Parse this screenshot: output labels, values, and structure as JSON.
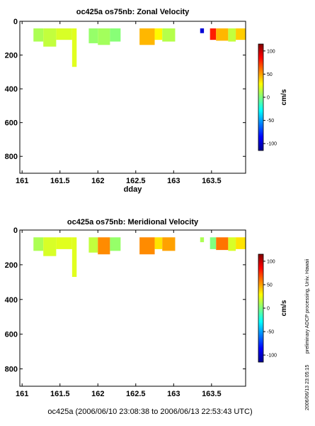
{
  "chart_data": [
    {
      "type": "heatmap",
      "title": "oc425a os75nb: Zonal Velocity",
      "xlabel": "dday",
      "ylabel": "",
      "xlim": [
        160.97,
        163.95
      ],
      "ylim": [
        900,
        0
      ],
      "xticks": [
        161,
        161.5,
        162,
        162.5,
        163,
        163.5
      ],
      "xtick_labels": [
        "161",
        "161.5",
        "162",
        "162.5",
        "163",
        "163.5"
      ],
      "yticks": [
        0,
        200,
        400,
        600,
        800
      ],
      "ytick_labels": [
        "0",
        "200",
        "400",
        "600",
        "800"
      ],
      "colorbar": {
        "label": "cm/s",
        "ticks": [
          100,
          50,
          0,
          -50,
          -100
        ],
        "tick_labels": [
          "100",
          "50",
          "0",
          "-50",
          "-100"
        ],
        "range": [
          -115,
          115
        ]
      },
      "cells": [
        {
          "x0": 161.15,
          "x1": 161.28,
          "depth": 120,
          "value": 10
        },
        {
          "x0": 161.28,
          "x1": 161.45,
          "depth": 150,
          "value": 15
        },
        {
          "x0": 161.45,
          "x1": 161.66,
          "depth": 110,
          "value": 20
        },
        {
          "x0": 161.66,
          "x1": 161.72,
          "depth": 270,
          "value": 22
        },
        {
          "x0": 161.88,
          "x1": 162.0,
          "depth": 130,
          "value": 5
        },
        {
          "x0": 162.0,
          "x1": 162.16,
          "depth": 140,
          "value": 8
        },
        {
          "x0": 162.16,
          "x1": 162.3,
          "depth": 120,
          "value": 2
        },
        {
          "x0": 162.55,
          "x1": 162.75,
          "depth": 140,
          "value": 45
        },
        {
          "x0": 162.75,
          "x1": 162.85,
          "depth": 110,
          "value": 30
        },
        {
          "x0": 162.85,
          "x1": 163.02,
          "depth": 120,
          "value": 12
        },
        {
          "x0": 163.35,
          "x1": 163.4,
          "depth": 70,
          "value": -95
        },
        {
          "x0": 163.48,
          "x1": 163.56,
          "depth": 110,
          "value": 80
        },
        {
          "x0": 163.56,
          "x1": 163.72,
          "depth": 115,
          "value": 45
        },
        {
          "x0": 163.72,
          "x1": 163.82,
          "depth": 120,
          "value": 15
        },
        {
          "x0": 163.82,
          "x1": 163.95,
          "depth": 110,
          "value": 40
        }
      ]
    },
    {
      "type": "heatmap",
      "title": "oc425a os75nb: Meridional Velocity",
      "xlabel": "",
      "ylabel": "",
      "xlim": [
        160.97,
        163.95
      ],
      "ylim": [
        900,
        0
      ],
      "xticks": [
        161,
        161.5,
        162,
        162.5,
        163,
        163.5
      ],
      "xtick_labels": [
        "161",
        "161.5",
        "162",
        "162.5",
        "163",
        "163.5"
      ],
      "yticks": [
        0,
        200,
        400,
        600,
        800
      ],
      "ytick_labels": [
        "0",
        "200",
        "400",
        "600",
        "800"
      ],
      "colorbar": {
        "label": "cm/s",
        "ticks": [
          100,
          50,
          0,
          -50,
          -100
        ],
        "tick_labels": [
          "100",
          "50",
          "0",
          "-50",
          "-100"
        ],
        "range": [
          -115,
          115
        ]
      },
      "cells": [
        {
          "x0": 161.15,
          "x1": 161.28,
          "depth": 120,
          "value": 10
        },
        {
          "x0": 161.28,
          "x1": 161.45,
          "depth": 150,
          "value": 20
        },
        {
          "x0": 161.45,
          "x1": 161.66,
          "depth": 110,
          "value": 22
        },
        {
          "x0": 161.66,
          "x1": 161.72,
          "depth": 270,
          "value": 22
        },
        {
          "x0": 161.88,
          "x1": 162.0,
          "depth": 130,
          "value": 15
        },
        {
          "x0": 162.0,
          "x1": 162.16,
          "depth": 140,
          "value": 55
        },
        {
          "x0": 162.16,
          "x1": 162.3,
          "depth": 120,
          "value": 5
        },
        {
          "x0": 162.55,
          "x1": 162.75,
          "depth": 140,
          "value": 55
        },
        {
          "x0": 162.75,
          "x1": 162.85,
          "depth": 110,
          "value": 35
        },
        {
          "x0": 162.85,
          "x1": 163.02,
          "depth": 120,
          "value": 50
        },
        {
          "x0": 163.35,
          "x1": 163.4,
          "depth": 70,
          "value": 10
        },
        {
          "x0": 163.48,
          "x1": 163.56,
          "depth": 110,
          "value": 0
        },
        {
          "x0": 163.56,
          "x1": 163.72,
          "depth": 115,
          "value": 60
        },
        {
          "x0": 163.72,
          "x1": 163.82,
          "depth": 120,
          "value": 20
        },
        {
          "x0": 163.82,
          "x1": 163.95,
          "depth": 110,
          "value": 35
        }
      ]
    }
  ],
  "footer": "oc425a (2006/06/10 23:08:38 to 2006/06/13 22:53:43 UTC)",
  "side_note": "preliminary ADCP processing,   Univ. Hawaii",
  "timestamp": "2006/06/13 23:05:15"
}
